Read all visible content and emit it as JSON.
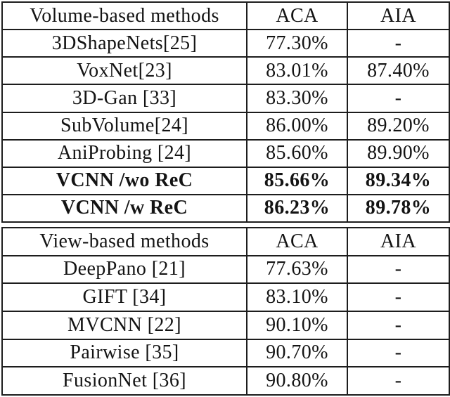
{
  "colors": {
    "background": "#ffffff",
    "border": "#1d1d1d",
    "text": "#141414"
  },
  "tables": [
    {
      "name": "volume-based-methods",
      "header": {
        "category": "Volume-based methods",
        "aca": "ACA",
        "aia": "AIA"
      },
      "rows": [
        {
          "method": "3DShapeNets[25]",
          "aca": "77.30%",
          "aia": "-"
        },
        {
          "method": "VoxNet[23]",
          "aca": "83.01%",
          "aia": "87.40%"
        },
        {
          "method": "3D-Gan [33]",
          "aca": "83.30%",
          "aia": "-"
        },
        {
          "method": "SubVolume[24]",
          "aca": "86.00%",
          "aia": "89.20%"
        },
        {
          "method": "AniProbing [24]",
          "aca": "85.60%",
          "aia": "89.90%"
        },
        {
          "method": "VCNN /wo ReC",
          "aca": "85.66%",
          "aia": "89.34%",
          "emphasis": "bold"
        },
        {
          "method": "VCNN /w ReC",
          "aca": "86.23%",
          "aia": "89.78%",
          "emphasis": "bold"
        }
      ]
    },
    {
      "name": "view-based-methods",
      "header": {
        "category": "View-based methods",
        "aca": "ACA",
        "aia": "AIA"
      },
      "rows": [
        {
          "method": "DeepPano [21]",
          "aca": "77.63%",
          "aia": "-"
        },
        {
          "method": "GIFT [34]",
          "aca": "83.10%",
          "aia": "-"
        },
        {
          "method": "MVCNN [22]",
          "aca": "90.10%",
          "aia": "-"
        },
        {
          "method": "Pairwise [35]",
          "aca": "90.70%",
          "aia": "-"
        },
        {
          "method": "FusionNet [36]",
          "aca": "90.80%",
          "aia": "-"
        }
      ]
    }
  ]
}
